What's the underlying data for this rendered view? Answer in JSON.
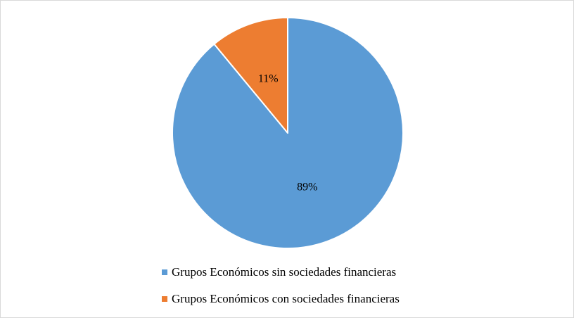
{
  "chart_data": {
    "type": "pie",
    "title": "",
    "categories": [
      "Grupos Económicos sin sociedades financieras",
      "Grupos Económicos con sociedades financieras"
    ],
    "values": [
      89,
      11
    ],
    "value_labels": [
      "89%",
      "11%"
    ],
    "colors": [
      "#5b9bd5",
      "#ed7d31"
    ],
    "start_angle_deg": 0,
    "direction": "clockwise",
    "legend_position": "bottom"
  }
}
